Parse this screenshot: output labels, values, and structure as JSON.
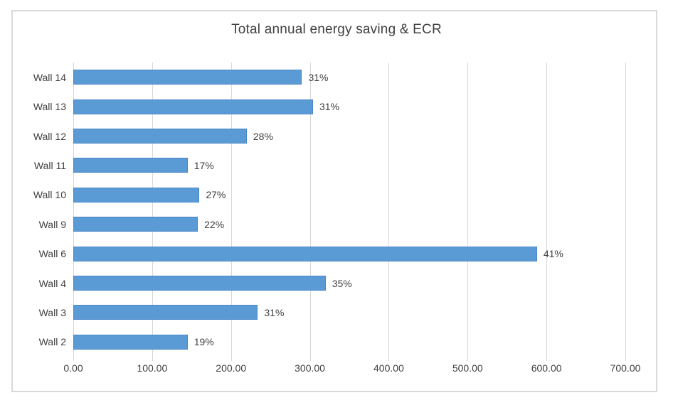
{
  "chart_data": {
    "type": "bar",
    "orientation": "horizontal",
    "title": "Total annual energy saving & ECR",
    "categories": [
      "Wall 14",
      "Wall 13",
      "Wall 12",
      "Wall 11",
      "Wall 10",
      "Wall 9",
      "Wall 6",
      "Wall 4",
      "Wall 3",
      "Wall 2"
    ],
    "values": [
      290,
      304,
      220,
      145,
      160,
      158,
      588,
      320,
      234,
      145
    ],
    "data_labels": [
      "31%",
      "31%",
      "28%",
      "17%",
      "27%",
      "22%",
      "41%",
      "35%",
      "31%",
      "19%"
    ],
    "x_ticks": [
      "0.00",
      "100.00",
      "200.00",
      "300.00",
      "400.00",
      "500.00",
      "600.00",
      "700.00"
    ],
    "x_tick_values": [
      0,
      100,
      200,
      300,
      400,
      500,
      600,
      700
    ],
    "xlim": [
      0,
      700
    ],
    "xlabel": "",
    "ylabel": "",
    "grid": true,
    "legend": "none",
    "colors": {
      "bar_fill": "#5b9bd5",
      "bar_border": "#4a86c8",
      "gridline": "#d6d6d6",
      "frame_border": "#d9d9d9",
      "text": "#404040"
    }
  }
}
